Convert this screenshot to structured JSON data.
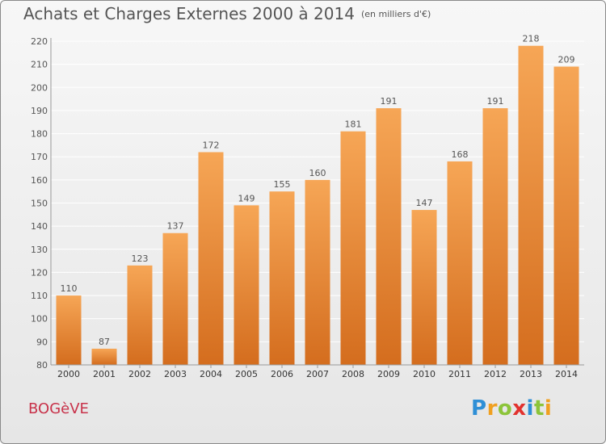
{
  "header": {
    "title": "Achats et Charges Externes 2000 à 2014",
    "subtitle": "(en milliers d'€)"
  },
  "footer": {
    "place": "BOGèVE",
    "logo_letters": [
      "P",
      "r",
      "o",
      "x",
      "i",
      "t",
      "i"
    ],
    "logo_colors": [
      "#2e8fd6",
      "#f0a020",
      "#8cc43a",
      "#e2322e",
      "#2e8fd6",
      "#8cc43a",
      "#f0a020"
    ]
  },
  "colors": {
    "bar_light": "#f6a656",
    "bar_dark": "#d46d1e",
    "grid": "#ffffff",
    "text": "#555555"
  },
  "chart_data": {
    "type": "bar",
    "title": "Achats et Charges Externes 2000 à 2014",
    "subtitle": "(en milliers d'€)",
    "categories": [
      "2000",
      "2001",
      "2002",
      "2003",
      "2004",
      "2005",
      "2006",
      "2007",
      "2008",
      "2009",
      "2010",
      "2011",
      "2012",
      "2013",
      "2014"
    ],
    "values": [
      110,
      87,
      123,
      137,
      172,
      149,
      155,
      160,
      181,
      191,
      147,
      168,
      191,
      218,
      209
    ],
    "ylim": [
      80,
      220
    ],
    "yticks": [
      80,
      90,
      100,
      110,
      120,
      130,
      140,
      150,
      160,
      170,
      180,
      190,
      200,
      210,
      220
    ],
    "grid": true,
    "data_labels": true
  }
}
